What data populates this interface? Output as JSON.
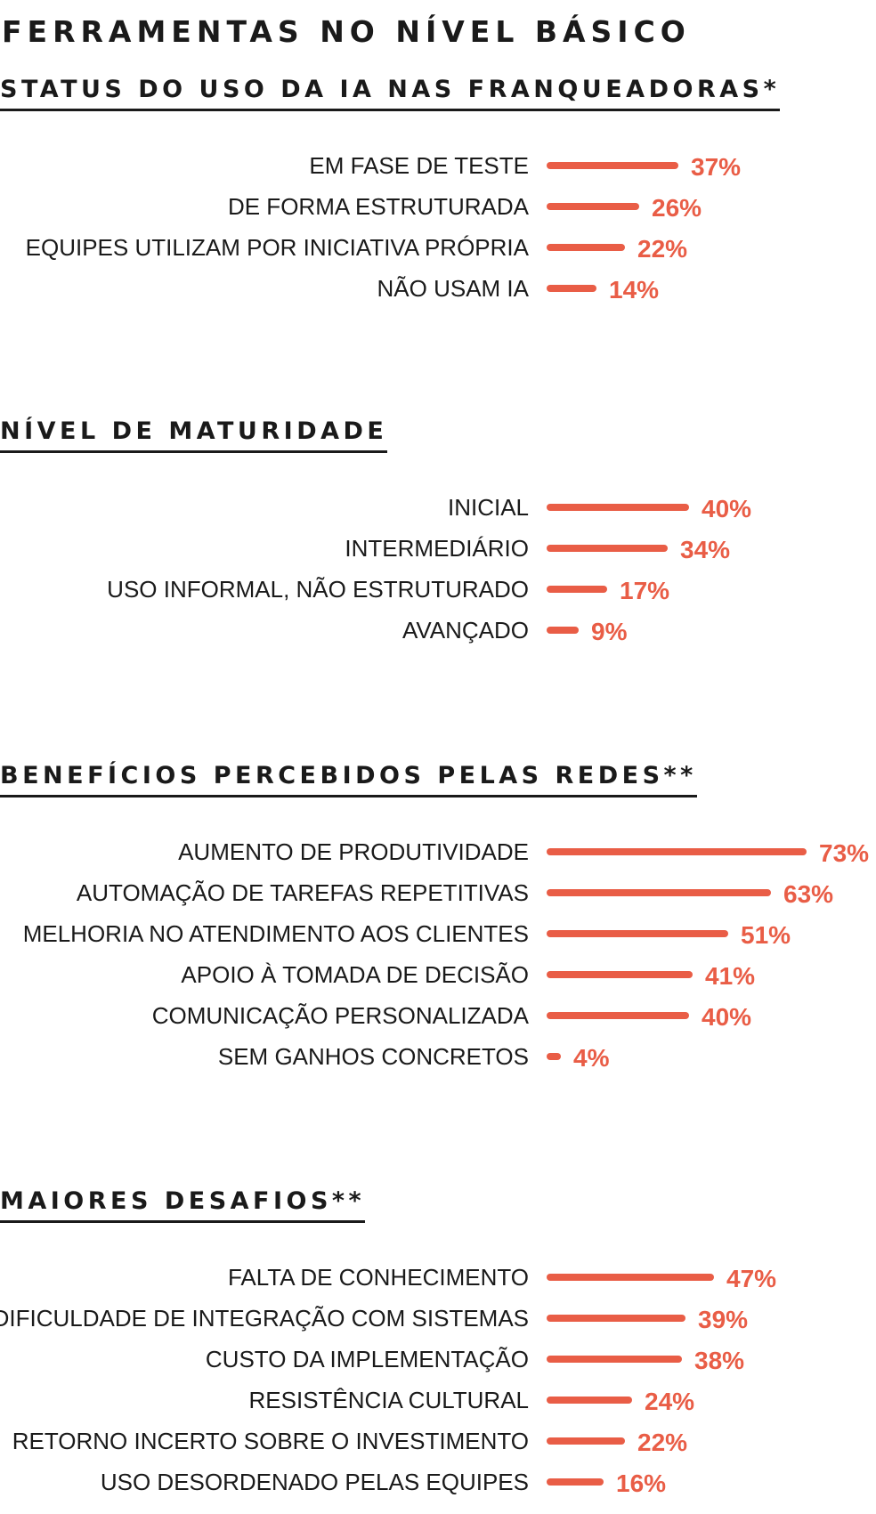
{
  "title": "FERRAMENTAS NO NÍVEL BÁSICO",
  "accent_color": "#e95d46",
  "chart_data": [
    {
      "type": "bar",
      "orientation": "horizontal",
      "title": "STATUS DO USO DA IA NAS FRANQUEADORAS*",
      "categories": [
        "EM FASE DE TESTE",
        "DE FORMA ESTRUTURADA",
        "EQUIPES UTILIZAM POR INICIATIVA PRÓPRIA",
        "NÃO USAM IA"
      ],
      "values": [
        37,
        26,
        22,
        14
      ],
      "value_labels": [
        "37%",
        "26%",
        "22%",
        "14%"
      ]
    },
    {
      "type": "bar",
      "orientation": "horizontal",
      "title": "NÍVEL DE MATURIDADE",
      "categories": [
        "INICIAL",
        "INTERMEDIÁRIO",
        "USO INFORMAL, NÃO ESTRUTURADO",
        "AVANÇADO"
      ],
      "values": [
        40,
        34,
        17,
        9
      ],
      "value_labels": [
        "40%",
        "34%",
        "17%",
        "9%"
      ]
    },
    {
      "type": "bar",
      "orientation": "horizontal",
      "title": "BENEFÍCIOS PERCEBIDOS PELAS REDES**",
      "categories": [
        "AUMENTO DE PRODUTIVIDADE",
        "AUTOMAÇÃO DE TAREFAS REPETITIVAS",
        "MELHORIA NO ATENDIMENTO AOS CLIENTES",
        "APOIO À TOMADA DE DECISÃO",
        "COMUNICAÇÃO PERSONALIZADA",
        "SEM GANHOS CONCRETOS"
      ],
      "values": [
        73,
        63,
        51,
        41,
        40,
        4
      ],
      "value_labels": [
        "73%",
        "63%",
        "51%",
        "41%",
        "40%",
        "4%"
      ]
    },
    {
      "type": "bar",
      "orientation": "horizontal",
      "title": "MAIORES DESAFIOS**",
      "categories": [
        "FALTA DE CONHECIMENTO",
        "DIFICULDADE DE INTEGRAÇÃO COM SISTEMAS",
        "CUSTO DA IMPLEMENTAÇÃO",
        "RESISTÊNCIA CULTURAL",
        "RETORNO INCERTO SOBRE O INVESTIMENTO",
        "USO DESORDENADO PELAS EQUIPES"
      ],
      "values": [
        47,
        39,
        38,
        24,
        22,
        16
      ],
      "value_labels": [
        "47%",
        "39%",
        "38%",
        "24%",
        "22%",
        "16%"
      ]
    }
  ]
}
